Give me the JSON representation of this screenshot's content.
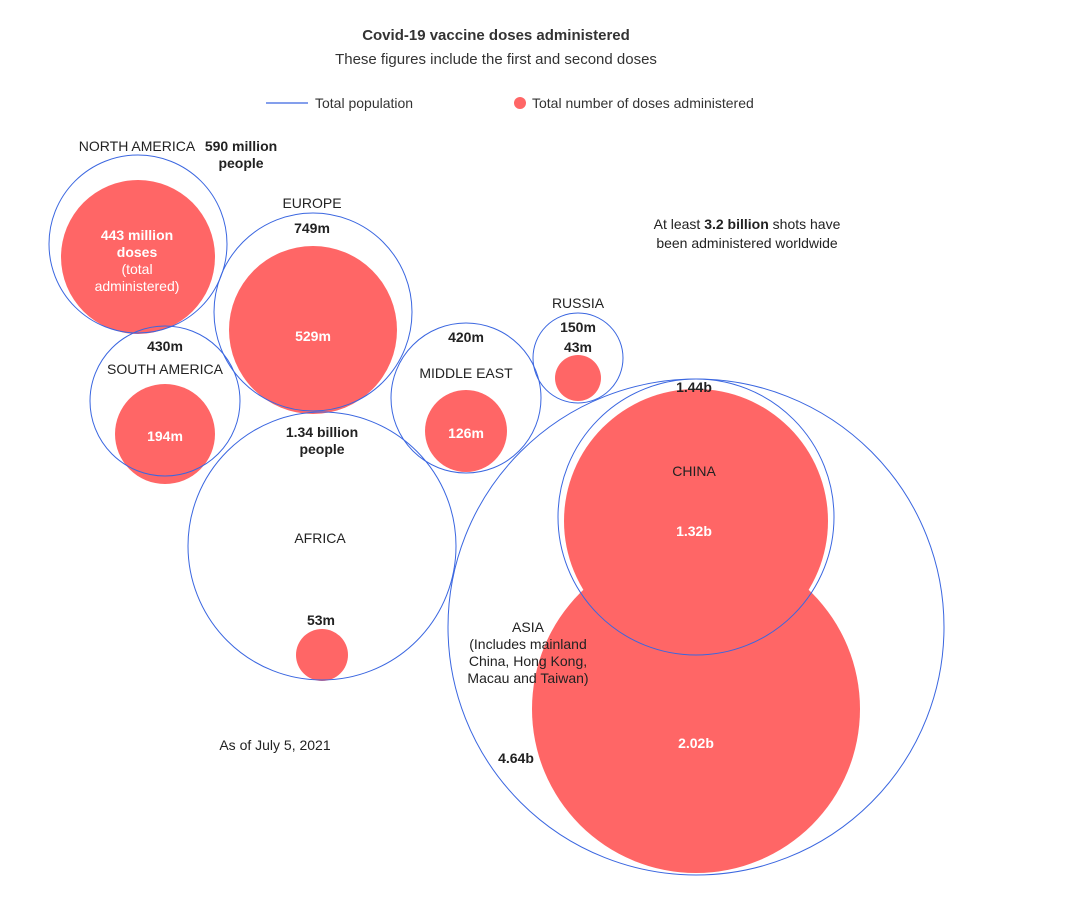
{
  "title": "Covid-19 vaccine doses administered",
  "subtitle": "These figures include the first and second doses",
  "legend": {
    "population": "Total population",
    "doses": "Total number of doses administered"
  },
  "note": {
    "prefix": "At least ",
    "highlight": "3.2 billion",
    "suffix": " shots have",
    "line2": "been administered worldwide"
  },
  "date_note": "As of July 5, 2021",
  "colors": {
    "population": "#3a66e0",
    "doses": "#ff6666",
    "text": "#222222"
  },
  "chart_data": {
    "type": "bubble",
    "title": "Covid-19 vaccine doses administered",
    "subtitle": "These figures include the first and second doses",
    "series": [
      {
        "name": "Total population",
        "style": "outline circle"
      },
      {
        "name": "Total number of doses administered",
        "style": "filled circle"
      }
    ],
    "regions": [
      {
        "name": "NORTH AMERICA",
        "population_millions": 590,
        "doses_millions": 443,
        "population_label": [
          "590 million",
          "people"
        ],
        "doses_label": [
          "443 million",
          "doses",
          "(total",
          "administered)"
        ]
      },
      {
        "name": "EUROPE",
        "population_millions": 749,
        "doses_millions": 529,
        "population_label": [
          "749m"
        ],
        "doses_label": [
          "529m"
        ]
      },
      {
        "name": "SOUTH AMERICA",
        "population_millions": 430,
        "doses_millions": 194,
        "population_label": [
          "430m"
        ],
        "doses_label": [
          "194m"
        ]
      },
      {
        "name": "MIDDLE EAST",
        "population_millions": 420,
        "doses_millions": 126,
        "population_label": [
          "420m"
        ],
        "doses_label": [
          "126m"
        ]
      },
      {
        "name": "RUSSIA",
        "population_millions": 150,
        "doses_millions": 43,
        "population_label": [
          "150m"
        ],
        "doses_label": [
          "43m"
        ]
      },
      {
        "name": "AFRICA",
        "population_millions": 1340,
        "doses_millions": 53,
        "population_label": [
          "1.34 billion",
          "people"
        ],
        "doses_label": [
          "53m"
        ]
      },
      {
        "name": "CHINA",
        "population_millions": 1440,
        "doses_millions": 1320,
        "population_label": [
          "1.44b"
        ],
        "doses_label": [
          "1.32b"
        ]
      },
      {
        "name": [
          "ASIA",
          "(Includes mainland",
          "China, Hong Kong,",
          "Macau and Taiwan)"
        ],
        "population_millions": 4640,
        "doses_millions": 2020,
        "population_label": [
          "4.64b"
        ],
        "doses_label": [
          "2.02b"
        ]
      }
    ],
    "worldwide_total_doses_billions": 3.2,
    "date": "As of July 5, 2021"
  }
}
